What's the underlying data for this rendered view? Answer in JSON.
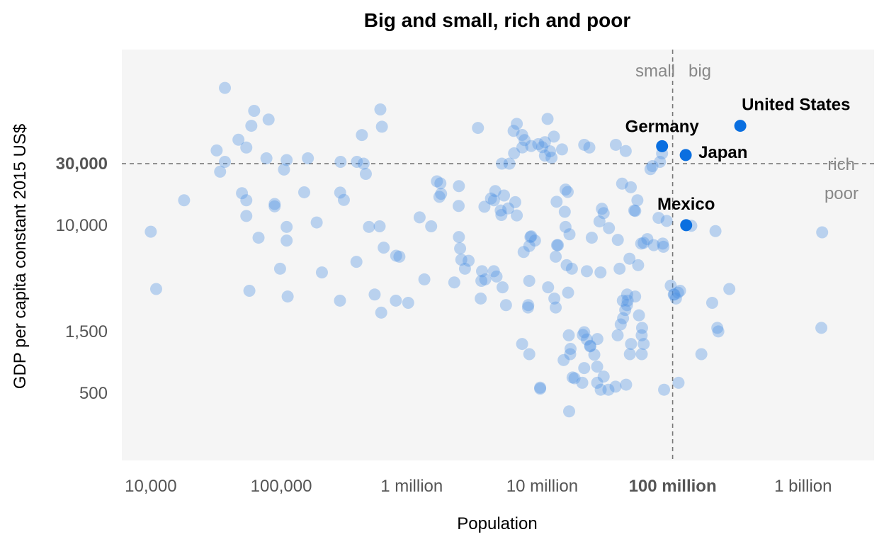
{
  "chart_data": {
    "type": "scatter",
    "title": "Big and small, rich and poor",
    "xlabel": "Population",
    "ylabel": "GDP per capita constant 2015 US$",
    "x_scale": "log",
    "y_scale": "log",
    "xlim": [
      6000,
      3500000000
    ],
    "ylim": [
      150,
      230000
    ],
    "x_ticks": [
      {
        "value": 10000,
        "label": "10,000",
        "bold": false
      },
      {
        "value": 100000,
        "label": "100,000",
        "bold": false
      },
      {
        "value": 1000000,
        "label": "1 million",
        "bold": false
      },
      {
        "value": 10000000,
        "label": "10 million",
        "bold": false
      },
      {
        "value": 100000000,
        "label": "100 million",
        "bold": true
      },
      {
        "value": 1000000000,
        "label": "1 billion",
        "bold": false
      }
    ],
    "y_ticks": [
      {
        "value": 500,
        "label": "500",
        "bold": false
      },
      {
        "value": 1500,
        "label": "1,500",
        "bold": false
      },
      {
        "value": 10000,
        "label": "10,000",
        "bold": false
      },
      {
        "value": 30000,
        "label": "30,000",
        "bold": true
      }
    ],
    "reference_lines": {
      "x": 100000000,
      "y": 30000
    },
    "quadrant_labels": {
      "small": "small",
      "big": "big",
      "rich": "rich",
      "poor": "poor"
    },
    "colors": {
      "point": "#4a90e2",
      "highlight": "#0a6fe0",
      "panel": "#f5f5f5",
      "refline": "#777777"
    },
    "highlighted": [
      {
        "name": "United States",
        "x": 330000000,
        "y": 59000
      },
      {
        "name": "Germany",
        "x": 83000000,
        "y": 41000
      },
      {
        "name": "Japan",
        "x": 126000000,
        "y": 35000
      },
      {
        "name": "Mexico",
        "x": 127000000,
        "y": 10000
      }
    ],
    "points": [
      [
        37000,
        116000
      ],
      [
        62000,
        77000
      ],
      [
        80000,
        66000
      ],
      [
        59000,
        59000
      ],
      [
        575000,
        79000
      ],
      [
        591000,
        58000
      ],
      [
        32000,
        38000
      ],
      [
        47000,
        46000
      ],
      [
        54000,
        40000
      ],
      [
        37000,
        31000
      ],
      [
        34000,
        26000
      ],
      [
        77000,
        33000
      ],
      [
        110000,
        32000
      ],
      [
        105000,
        27000
      ],
      [
        160000,
        33000
      ],
      [
        285000,
        31000
      ],
      [
        415000,
        50000
      ],
      [
        380000,
        31000
      ],
      [
        428000,
        30000
      ],
      [
        445000,
        25000
      ],
      [
        18000,
        15600
      ],
      [
        50000,
        17700
      ],
      [
        54000,
        15600
      ],
      [
        54000,
        11800
      ],
      [
        89000,
        14600
      ],
      [
        89000,
        14000
      ],
      [
        110000,
        9700
      ],
      [
        150000,
        18000
      ],
      [
        187000,
        10500
      ],
      [
        283000,
        17900
      ],
      [
        302000,
        15700
      ],
      [
        67000,
        8000
      ],
      [
        110000,
        7600
      ],
      [
        470000,
        9700
      ],
      [
        568000,
        9800
      ],
      [
        610000,
        6700
      ],
      [
        10000,
        8900
      ],
      [
        11000,
        3200
      ],
      [
        57000,
        3100
      ],
      [
        98000,
        4600
      ],
      [
        112000,
        2800
      ],
      [
        205000,
        4300
      ],
      [
        282000,
        2600
      ],
      [
        377000,
        5200
      ],
      [
        520000,
        2900
      ],
      [
        584000,
        2100
      ],
      [
        760000,
        5800
      ],
      [
        805000,
        5700
      ],
      [
        756000,
        2600
      ],
      [
        940000,
        2500
      ],
      [
        1250000,
        3800
      ],
      [
        1150000,
        11500
      ],
      [
        1410000,
        9800
      ],
      [
        1560000,
        21900
      ],
      [
        1660000,
        21100
      ],
      [
        1630000,
        16600
      ],
      [
        1680000,
        17500
      ],
      [
        2300000,
        20100
      ],
      [
        2290000,
        14100
      ],
      [
        2350000,
        6600
      ],
      [
        2300000,
        8100
      ],
      [
        2400000,
        5400
      ],
      [
        2730000,
        5300
      ],
      [
        2560000,
        4600
      ],
      [
        2120000,
        3600
      ],
      [
        3220000,
        56800
      ],
      [
        3610000,
        13900
      ],
      [
        4050000,
        16100
      ],
      [
        4270000,
        15600
      ],
      [
        4370000,
        18400
      ],
      [
        4810000,
        13000
      ],
      [
        4260000,
        4400
      ],
      [
        3460000,
        4400
      ],
      [
        3420000,
        3700
      ],
      [
        3660000,
        3800
      ],
      [
        3380000,
        2700
      ],
      [
        4470000,
        4000
      ],
      [
        4970000,
        3300
      ],
      [
        5280000,
        2400
      ],
      [
        5610000,
        30000
      ],
      [
        4910000,
        30000
      ],
      [
        4870000,
        12000
      ],
      [
        5100000,
        17000
      ],
      [
        5500000,
        13500
      ],
      [
        6390000,
        11900
      ],
      [
        6220000,
        15100
      ],
      [
        6090000,
        36100
      ],
      [
        6040000,
        53900
      ],
      [
        6390000,
        61100
      ],
      [
        7020000,
        50100
      ],
      [
        7050000,
        40100
      ],
      [
        7330000,
        45700
      ],
      [
        8240000,
        41100
      ],
      [
        7210000,
        6200
      ],
      [
        8240000,
        8200
      ],
      [
        8130000,
        8100
      ],
      [
        8810000,
        7600
      ],
      [
        7970000,
        6900
      ],
      [
        7960000,
        3700
      ],
      [
        7820000,
        2400
      ],
      [
        7790000,
        2300
      ],
      [
        9330000,
        42500
      ],
      [
        10000000,
        40300
      ],
      [
        10500000,
        44000
      ],
      [
        10500000,
        34600
      ],
      [
        11000000,
        66700
      ],
      [
        11800000,
        33400
      ],
      [
        11500000,
        37400
      ],
      [
        12300000,
        48600
      ],
      [
        14200000,
        38700
      ],
      [
        15100000,
        18900
      ],
      [
        15700000,
        18100
      ],
      [
        12900000,
        15200
      ],
      [
        14900000,
        12700
      ],
      [
        15100000,
        9700
      ],
      [
        16200000,
        8500
      ],
      [
        13200000,
        7000
      ],
      [
        12700000,
        5700
      ],
      [
        13000000,
        7000
      ],
      [
        15400000,
        4900
      ],
      [
        16900000,
        4600
      ],
      [
        15800000,
        3000
      ],
      [
        12400000,
        2700
      ],
      [
        12700000,
        2300
      ],
      [
        11100000,
        3300
      ],
      [
        16000000,
        1400
      ],
      [
        16400000,
        1000
      ],
      [
        16500000,
        1100
      ],
      [
        14600000,
        900
      ],
      [
        17700000,
        650
      ],
      [
        17100000,
        660
      ],
      [
        16100000,
        360
      ],
      [
        7020000,
        1200
      ],
      [
        7970000,
        1000
      ],
      [
        9650000,
        550
      ],
      [
        9650000,
        540
      ],
      [
        21000000,
        42000
      ],
      [
        23000000,
        40000
      ],
      [
        24000000,
        8000
      ],
      [
        22000000,
        4400
      ],
      [
        28000000,
        4300
      ],
      [
        28700000,
        13400
      ],
      [
        27500000,
        10700
      ],
      [
        29600000,
        12400
      ],
      [
        32500000,
        9500
      ],
      [
        21000000,
        1480
      ],
      [
        22000000,
        1300
      ],
      [
        23400000,
        1160
      ],
      [
        23300000,
        1150
      ],
      [
        20500000,
        1410
      ],
      [
        26500000,
        1310
      ],
      [
        25100000,
        990
      ],
      [
        28100000,
        530
      ],
      [
        21000000,
        780
      ],
      [
        26400000,
        800
      ],
      [
        29600000,
        670
      ],
      [
        20300000,
        600
      ],
      [
        26400000,
        600
      ],
      [
        32200000,
        530
      ],
      [
        36500000,
        560
      ],
      [
        37900000,
        1400
      ],
      [
        40000000,
        1700
      ],
      [
        41700000,
        1900
      ],
      [
        43300000,
        2200
      ],
      [
        44700000,
        2400
      ],
      [
        36700000,
        42000
      ],
      [
        38000000,
        7700
      ],
      [
        39200000,
        4600
      ],
      [
        41500000,
        2600
      ],
      [
        46700000,
        5500
      ],
      [
        44800000,
        2900
      ],
      [
        45200000,
        2600
      ],
      [
        51600000,
        2800
      ],
      [
        54400000,
        4900
      ],
      [
        55200000,
        2000
      ],
      [
        57900000,
        1400
      ],
      [
        58300000,
        1600
      ],
      [
        41000000,
        21000
      ],
      [
        43700000,
        37600
      ],
      [
        47800000,
        19700
      ],
      [
        50800000,
        13000
      ],
      [
        51700000,
        12900
      ],
      [
        53700000,
        15600
      ],
      [
        57400000,
        7200
      ],
      [
        60000000,
        7300
      ],
      [
        64000000,
        7800
      ],
      [
        67600000,
        27200
      ],
      [
        70000000,
        28700
      ],
      [
        80000000,
        31000
      ],
      [
        71700000,
        7000
      ],
      [
        84000000,
        7200
      ],
      [
        78000000,
        11400
      ],
      [
        83000000,
        36000
      ],
      [
        85000000,
        6800
      ],
      [
        90000000,
        10800
      ],
      [
        96700000,
        3400
      ],
      [
        102000000,
        2900
      ],
      [
        106000000,
        2700
      ],
      [
        110000000,
        3000
      ],
      [
        114000000,
        3100
      ],
      [
        103000000,
        2900
      ],
      [
        47000000,
        1000
      ],
      [
        48000000,
        1200
      ],
      [
        44000000,
        580
      ],
      [
        58000000,
        1000
      ],
      [
        60000000,
        1200
      ],
      [
        86000000,
        530
      ],
      [
        111000000,
        600
      ],
      [
        139000000,
        9900
      ],
      [
        166000000,
        1000
      ],
      [
        201000000,
        2500
      ],
      [
        213000000,
        9000
      ],
      [
        220000000,
        1600
      ],
      [
        224000000,
        1500
      ],
      [
        272000000,
        3200
      ],
      [
        1400000000,
        8800
      ],
      [
        1380000000,
        1600
      ]
    ]
  }
}
